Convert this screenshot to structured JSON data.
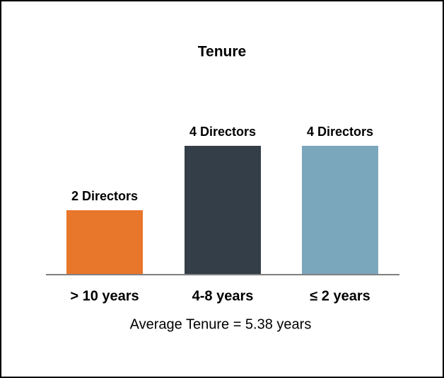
{
  "chart_data": {
    "type": "bar",
    "title": "Tenure",
    "categories": [
      "> 10 years",
      "4-8 years",
      "≤ 2 years"
    ],
    "values": [
      2,
      4,
      4
    ],
    "value_labels": [
      "2 Directors",
      "4 Directors",
      "4 Directors"
    ],
    "colors": [
      "#e8762b",
      "#343e48",
      "#7ba7bd"
    ],
    "ylim": [
      0,
      4
    ],
    "annotation": "Average Tenure = 5.38 years"
  }
}
